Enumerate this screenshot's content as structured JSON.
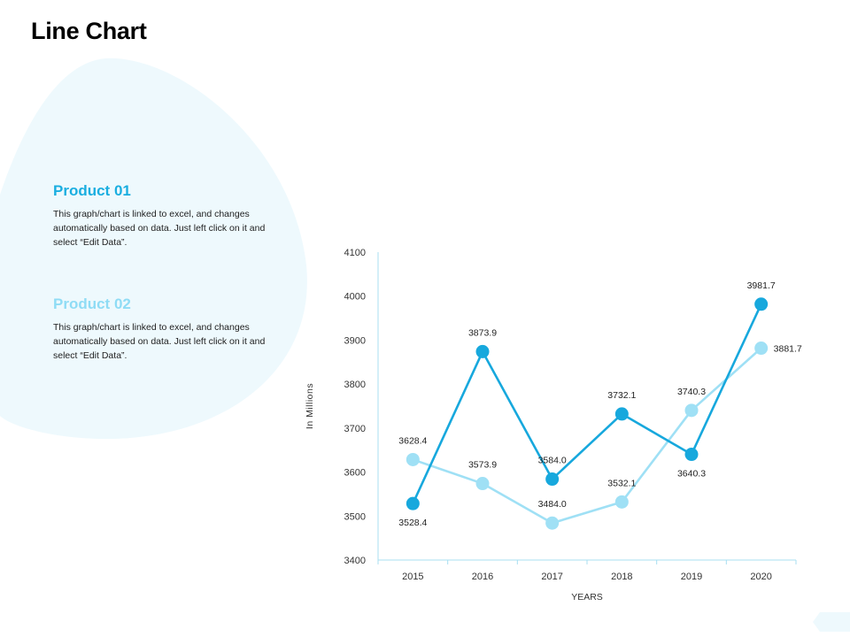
{
  "page": {
    "title": "Line Chart"
  },
  "products": [
    {
      "title": "Product  01",
      "color": "#1aaee0",
      "body": "This graph/chart is linked to excel, and changes automatically based on data. Just left click on it and select “Edit Data”."
    },
    {
      "title": "Product  02",
      "color": "#8fdcf5",
      "body": "This graph/chart is linked to excel, and changes automatically based on data. Just left click on it and select “Edit Data”."
    }
  ],
  "colors": {
    "series1": "#17a8dd",
    "series2": "#9fe0f5",
    "blob": "#eef9fd",
    "axis": "#a8dff2"
  },
  "chart_data": {
    "type": "line",
    "title": "",
    "xlabel": "YEARS",
    "ylabel": "In Millions",
    "categories": [
      "2015",
      "2016",
      "2017",
      "2018",
      "2019",
      "2020"
    ],
    "ylim": [
      3400,
      4100
    ],
    "yticks": [
      3400,
      3500,
      3600,
      3700,
      3800,
      3900,
      4000,
      4100
    ],
    "grid": false,
    "legend": "none",
    "series": [
      {
        "values": [
          3528.4,
          3873.9,
          3584.0,
          3732.1,
          3640.3,
          3981.7
        ],
        "labels": [
          "3528.4",
          "3873.9",
          "3584.0",
          "3732.1",
          "3640.3",
          "3981.7"
        ]
      },
      {
        "values": [
          3628.4,
          3573.9,
          3484.0,
          3532.1,
          3740.3,
          3881.7
        ],
        "labels": [
          "3628.4",
          "3573.9",
          "3484.0",
          "3532.1",
          "3740.3",
          "3881.7"
        ]
      }
    ]
  }
}
